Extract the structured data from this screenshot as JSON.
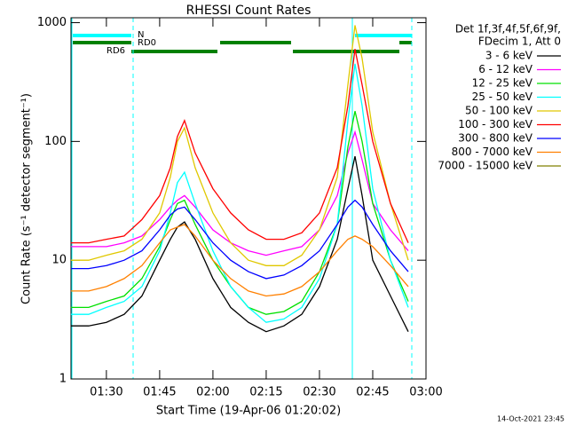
{
  "chart_data": {
    "type": "line",
    "title": "RHESSI Count Rates",
    "xlabel": "Start Time (19-Apr-06 01:20:02)",
    "ylabel": "Count Rate (s⁻¹ detector segment⁻¹)",
    "legend_header": [
      "Det 1f,3f,4f,5f,6f,9f,",
      "FDecim 1, Att 0"
    ],
    "footer": "14-Oct-2021 23:45",
    "annotations": [
      {
        "text": "N",
        "color": "#00ffff"
      },
      {
        "text": "RD0",
        "color": "#008000"
      },
      {
        "text": "RD6",
        "color": "#008000"
      }
    ],
    "log_y": true,
    "legend": "outside right",
    "xlim": [
      "01:20:02",
      "03:00"
    ],
    "xticks": [
      "01:30",
      "01:45",
      "02:00",
      "02:15",
      "02:30",
      "02:45",
      "03:00"
    ],
    "ylim": [
      1,
      1100
    ],
    "yticks": [
      1,
      10,
      100,
      1000
    ],
    "x": [
      "01:20",
      "01:25",
      "01:30",
      "01:35",
      "01:40",
      "01:45",
      "01:48",
      "01:50",
      "01:52",
      "01:55",
      "02:00",
      "02:05",
      "02:10",
      "02:15",
      "02:20",
      "02:25",
      "02:30",
      "02:35",
      "02:38",
      "02:40",
      "02:42",
      "02:45",
      "02:50",
      "02:55"
    ],
    "series": [
      {
        "name": "3 - 6 keV",
        "color": "#000000",
        "values": [
          2.8,
          2.8,
          3,
          3.5,
          5,
          10,
          15,
          19,
          21,
          15,
          7,
          4,
          3,
          2.5,
          2.8,
          3.5,
          6,
          15,
          40,
          75,
          35,
          10,
          5,
          2.5
        ]
      },
      {
        "name": "6 - 12 keV",
        "color": "#ff00ff",
        "values": [
          13,
          13,
          13,
          14,
          16,
          22,
          28,
          32,
          35,
          28,
          18,
          14,
          12,
          11,
          12,
          13,
          18,
          35,
          80,
          120,
          70,
          30,
          18,
          12
        ]
      },
      {
        "name": "12 - 25 keV",
        "color": "#00e000",
        "values": [
          4,
          4,
          4.5,
          5,
          7,
          13,
          22,
          30,
          32,
          20,
          10,
          6,
          4,
          3.5,
          3.7,
          4.5,
          8,
          20,
          90,
          180,
          100,
          30,
          10,
          4.5
        ]
      },
      {
        "name": "25 - 50 keV",
        "color": "#00ffff",
        "values": [
          3.5,
          3.5,
          4,
          4.5,
          6,
          12,
          25,
          45,
          55,
          30,
          12,
          6,
          4,
          3,
          3.2,
          4,
          7,
          20,
          150,
          450,
          200,
          40,
          10,
          4
        ]
      },
      {
        "name": "50 - 100 keV",
        "color": "#e0c800",
        "values": [
          10,
          10,
          11,
          12,
          15,
          25,
          50,
          100,
          130,
          60,
          25,
          14,
          10,
          9,
          9,
          11,
          18,
          50,
          300,
          950,
          500,
          120,
          30,
          10
        ]
      },
      {
        "name": "100 - 300 keV",
        "color": "#ff0000",
        "values": [
          14,
          14,
          15,
          16,
          22,
          35,
          60,
          110,
          150,
          80,
          40,
          25,
          18,
          15,
          15,
          17,
          25,
          60,
          200,
          600,
          300,
          100,
          30,
          14
        ]
      },
      {
        "name": "300 - 800 keV",
        "color": "#0000ff",
        "values": [
          8.5,
          8.5,
          9,
          10,
          12,
          18,
          24,
          27,
          28,
          22,
          14,
          10,
          8,
          7,
          7.5,
          9,
          12,
          20,
          28,
          32,
          28,
          20,
          12,
          8
        ]
      },
      {
        "name": "800 - 7000 keV",
        "color": "#ff8000",
        "values": [
          5.5,
          5.5,
          6,
          7,
          9,
          14,
          18,
          19,
          20,
          16,
          10,
          7,
          5.5,
          5,
          5.2,
          6,
          8,
          12,
          15,
          16,
          15,
          13,
          9,
          6
        ]
      },
      {
        "name": "7000 - 15000 keV",
        "color": "#808000",
        "values": [
          null,
          null,
          null,
          null,
          null,
          null,
          null,
          null,
          null,
          null,
          null,
          null,
          null,
          null,
          null,
          null,
          null,
          null,
          null,
          null,
          null,
          null,
          null,
          null
        ]
      }
    ]
  }
}
